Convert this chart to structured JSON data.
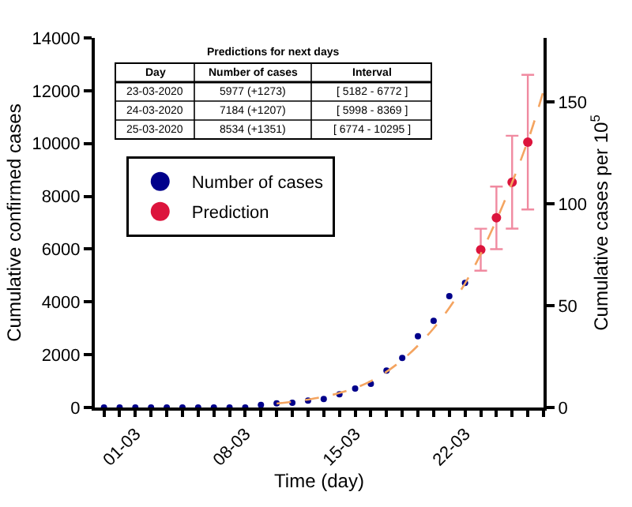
{
  "chart_data": {
    "type": "scatter",
    "xlabel": "Time (day)",
    "ylabel": "Cumulative confirmed cases",
    "y2label": "Cumulative cases per 10$^{5}$",
    "series": [
      {
        "name": "Number of cases",
        "color": "#00008b",
        "marker": "circle",
        "x": [
          "2020-02-28",
          "2020-02-29",
          "2020-03-01",
          "2020-03-02",
          "2020-03-03",
          "2020-03-04",
          "2020-03-05",
          "2020-03-06",
          "2020-03-07",
          "2020-03-08",
          "2020-03-09",
          "2020-03-10",
          "2020-03-11",
          "2020-03-12",
          "2020-03-13",
          "2020-03-14",
          "2020-03-15",
          "2020-03-16",
          "2020-03-17",
          "2020-03-18",
          "2020-03-19",
          "2020-03-20",
          "2020-03-21",
          "2020-03-22"
        ],
        "values": [
          0,
          0,
          0,
          0,
          0,
          0,
          0,
          0,
          0,
          0,
          100,
          160,
          180,
          260,
          320,
          500,
          720,
          900,
          1400,
          1880,
          2700,
          3280,
          4220,
          4720
        ]
      },
      {
        "name": "Prediction",
        "color": "#dc143c",
        "marker": "circle",
        "x": [
          "2020-03-23",
          "2020-03-24",
          "2020-03-25",
          "2020-03-26"
        ],
        "values": [
          5977,
          7184,
          8534,
          10050
        ],
        "errors": [
          [
            5182,
            6772
          ],
          [
            5998,
            8369
          ],
          [
            6774,
            10295
          ],
          [
            7500,
            12600
          ]
        ]
      },
      {
        "type": "line",
        "color": "#f4a460",
        "line_style": "dashed",
        "marker": "none",
        "x": [
          "2020-03-10",
          "2020-03-12",
          "2020-03-14",
          "2020-03-16",
          "2020-03-18",
          "2020-03-20",
          "2020-03-22",
          "2020-03-24",
          "2020-03-26",
          "2020-03-27"
        ],
        "values": [
          150,
          300,
          550,
          1000,
          1800,
          3000,
          4700,
          7100,
          10100,
          12000
        ]
      }
    ],
    "xlim": [
      "2020-02-27T10:00",
      "2020-03-27"
    ],
    "xticks": [
      {
        "value": "2020-02-28",
        "label": null
      },
      {
        "value": "2020-02-29",
        "label": null
      },
      {
        "value": "2020-03-01",
        "label": "01-03"
      },
      {
        "value": "2020-03-02",
        "label": null
      },
      {
        "value": "2020-03-03",
        "label": null
      },
      {
        "value": "2020-03-04",
        "label": null
      },
      {
        "value": "2020-03-05",
        "label": null
      },
      {
        "value": "2020-03-06",
        "label": null
      },
      {
        "value": "2020-03-07",
        "label": null
      },
      {
        "value": "2020-03-08",
        "label": "08-03"
      },
      {
        "value": "2020-03-09",
        "label": null
      },
      {
        "value": "2020-03-10",
        "label": null
      },
      {
        "value": "2020-03-11",
        "label": null
      },
      {
        "value": "2020-03-12",
        "label": null
      },
      {
        "value": "2020-03-13",
        "label": null
      },
      {
        "value": "2020-03-14",
        "label": null
      },
      {
        "value": "2020-03-15",
        "label": "15-03"
      },
      {
        "value": "2020-03-16",
        "label": null
      },
      {
        "value": "2020-03-17",
        "label": null
      },
      {
        "value": "2020-03-18",
        "label": null
      },
      {
        "value": "2020-03-19",
        "label": null
      },
      {
        "value": "2020-03-20",
        "label": null
      },
      {
        "value": "2020-03-21",
        "label": null
      },
      {
        "value": "2020-03-22",
        "label": "22-03"
      },
      {
        "value": "2020-03-23",
        "label": null
      },
      {
        "value": "2020-03-24",
        "label": null
      },
      {
        "value": "2020-03-25",
        "label": null
      },
      {
        "value": "2020-03-26",
        "label": null
      },
      {
        "value": "2020-03-27",
        "label": null
      }
    ],
    "ylim": [
      0,
      14000
    ],
    "yticks": [
      0,
      2000,
      4000,
      6000,
      8000,
      10000,
      12000,
      14000
    ],
    "y2lim": [
      0,
      181.3
    ],
    "y2ticks": [
      0,
      50,
      100,
      150
    ],
    "legend": "top left",
    "annotations": [
      "Predictions for next days",
      "Day",
      "Number of cases",
      "Interval",
      "23-03-2020",
      "5977 (+1273)",
      "[ 5182 - 6772 ]",
      "24-03-2020",
      "7184 (+1207)",
      "[ 5998 - 8369 ]",
      "25-03-2020",
      "8534 (+1351)",
      "[ 6774 - 10295 ]"
    ]
  }
}
